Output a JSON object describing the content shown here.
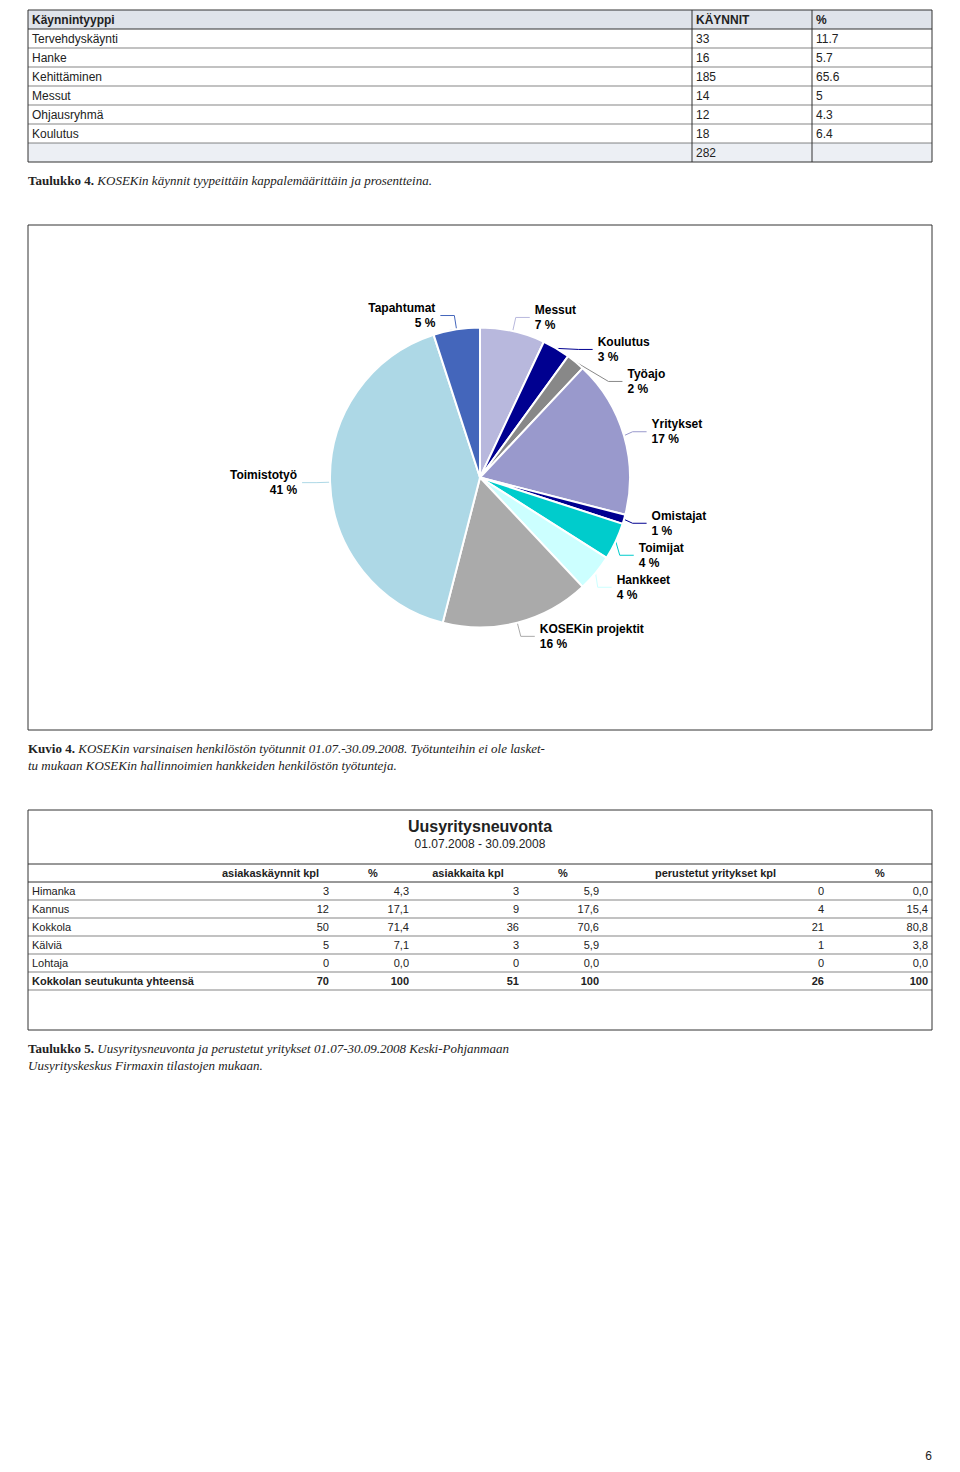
{
  "chart_data": [
    {
      "type": "table",
      "headers": [
        "Käynnintyyppi",
        "KÄYNNIT",
        "%"
      ],
      "rows": [
        [
          "Tervehdyskäynti",
          "33",
          "11.7"
        ],
        [
          "Hanke",
          "16",
          "5.7"
        ],
        [
          "Kehittäminen",
          "185",
          "65.6"
        ],
        [
          "Messut",
          "14",
          "5"
        ],
        [
          "Ohjausryhmä",
          "12",
          "4.3"
        ],
        [
          "Koulutus",
          "18",
          "6.4"
        ],
        [
          null,
          "282",
          null
        ]
      ],
      "caption": [
        "Taulukko 4.",
        "KOSEKin käynnit tyypeittäin kappalemäärittäin ja prosentteina."
      ]
    },
    {
      "type": "pie",
      "categories": [
        "Messut",
        "Koulutus",
        "Työajo",
        "Yritykset",
        "Omistajat",
        "Toimijat",
        "Hankkeet",
        "KOSEKin projektit",
        "Toimistotyö",
        "Tapahtumat"
      ],
      "values": [
        7,
        3,
        2,
        17,
        1,
        4,
        4,
        16,
        41,
        5
      ],
      "value_labels": [
        "7 %",
        "3 %",
        "2 %",
        "17 %",
        "1 %",
        "4 %",
        "4 %",
        "16 %",
        "41 %",
        "5 %"
      ],
      "colors": [
        "#b8b8dd",
        "#000090",
        "#888888",
        "#9999cc",
        "#000090",
        "#00cccc",
        "#ccffff",
        "#aaaaaa",
        "#add8e6",
        "#4466bb"
      ],
      "data_labels": true,
      "caption": [
        "Kuvio 4.",
        "KOSEKin varsinaisen henkilöstön työtunnit 01.07.-30.09.2008. Työtunteihin ei ole lasket-",
        "tu mukaan KOSEKin hallinnoimien hankkeiden henkilöstön työtunteja."
      ]
    },
    {
      "type": "table",
      "title": "Uusyritysneuvonta",
      "subtitle": "01.07.2008 - 30.09.2008",
      "headers": [
        null,
        "asiakaskäynnit kpl",
        "%",
        "asiakkaita kpl",
        "%",
        "perustetut yritykset kpl",
        "%"
      ],
      "rows": [
        [
          "Himanka",
          "3",
          "4,3",
          "3",
          "5,9",
          "0",
          "0,0"
        ],
        [
          "Kannus",
          "12",
          "17,1",
          "9",
          "17,6",
          "4",
          "15,4"
        ],
        [
          "Kokkola",
          "50",
          "71,4",
          "36",
          "70,6",
          "21",
          "80,8"
        ],
        [
          "Kälviä",
          "5",
          "7,1",
          "3",
          "5,9",
          "1",
          "3,8"
        ],
        [
          "Lohtaja",
          "0",
          "0,0",
          "0",
          "0,0",
          "0",
          "0,0"
        ],
        [
          "Kokkolan seutukunta yhteensä",
          "70",
          "100",
          "51",
          "100",
          "26",
          "100"
        ]
      ],
      "caption": [
        "Taulukko 5.",
        "Uusyritysneuvonta ja perustetut yritykset 01.07-30.09.2008 Keski-Pohjanmaan",
        "Uusyrityskeskus Firmaxin tilastojen mukaan."
      ]
    }
  ],
  "page_number": "6"
}
